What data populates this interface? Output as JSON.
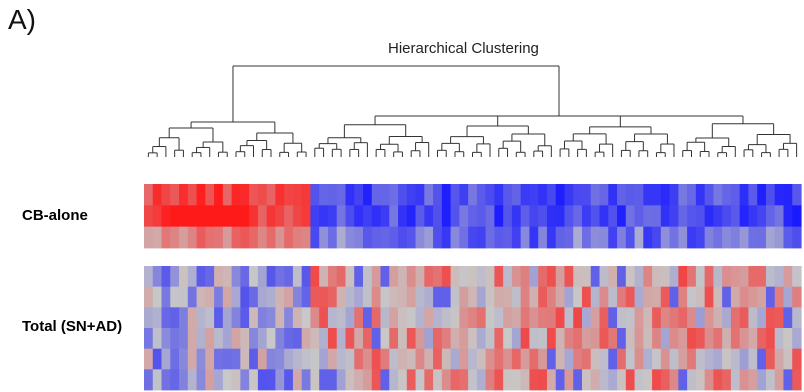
{
  "panel_label": "A)",
  "chart_data": {
    "type": "heatmap",
    "title": "Hierarchical Clustering",
    "row_groups": [
      {
        "label": "CB-alone",
        "rows": 3
      },
      {
        "label": "Total (SN+AD)",
        "rows": 6
      }
    ],
    "column_clusters": [
      {
        "name": "left-cluster",
        "n_columns": 19
      },
      {
        "name": "right-cluster",
        "n_columns": 56
      }
    ],
    "color_scale": {
      "low": "#1a1aff",
      "mid": "#c8c8c8",
      "high": "#ff1a1a"
    },
    "dendrogram": true
  },
  "colors": {
    "low": "#1a1aff",
    "mid": "#c8c8c8",
    "high": "#ff1a1a"
  }
}
